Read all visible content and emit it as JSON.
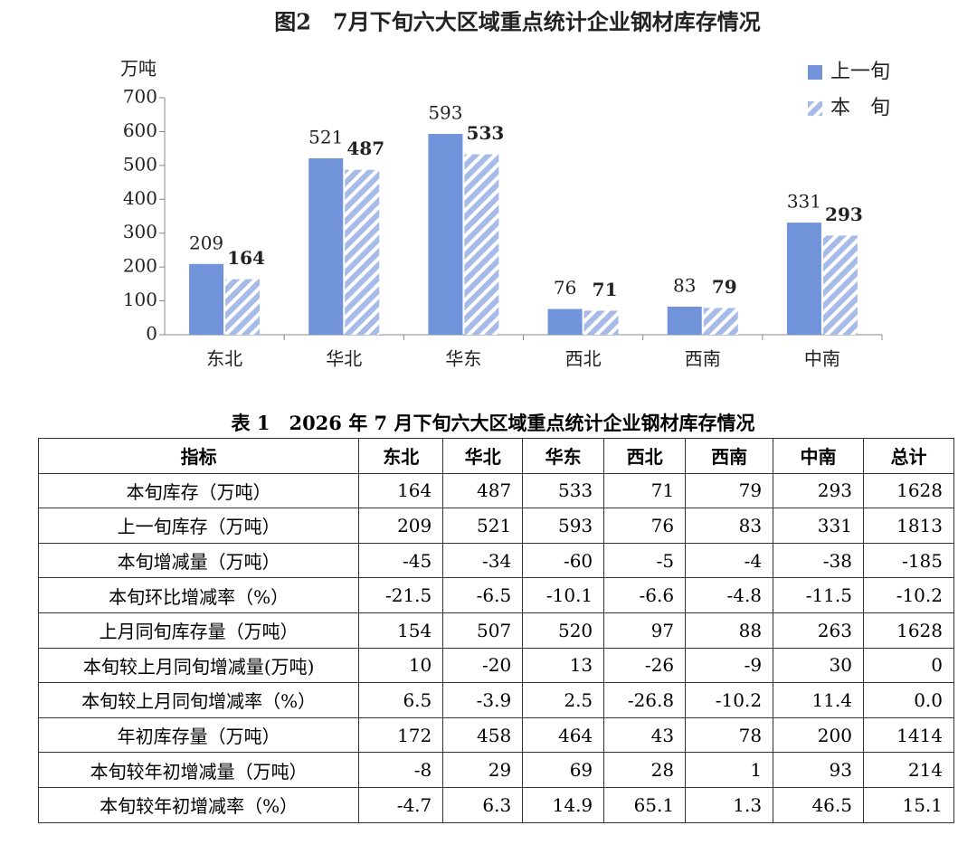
{
  "chart_data": {
    "type": "bar",
    "title": "图2　7月下旬六大区域重点统计企业钢材库存情况",
    "y_label": "万吨",
    "categories": [
      "东北",
      "华北",
      "华东",
      "西北",
      "西南",
      "中南"
    ],
    "series": [
      {
        "name": "上一旬",
        "color": "#7193d9",
        "values": [
          209,
          521,
          593,
          76,
          83,
          331
        ]
      },
      {
        "name": "本　旬",
        "color": "#a7bbe8",
        "hatch": true,
        "values": [
          164,
          487,
          533,
          71,
          79,
          293
        ]
      }
    ],
    "ylim": [
      0,
      700
    ],
    "yticks": [
      0,
      100,
      200,
      300,
      400,
      500,
      600,
      700
    ],
    "grid": false,
    "legend": "top-right"
  },
  "table": {
    "title": "表 1　2026 年 7 月下旬六大区域重点统计企业钢材库存情况",
    "header": [
      "指标",
      "东北",
      "华北",
      "华东",
      "西北",
      "西南",
      "中南",
      "总计"
    ],
    "rows": [
      [
        "本旬库存（万吨）",
        "164",
        "487",
        "533",
        "71",
        "79",
        "293",
        "1628"
      ],
      [
        "上一旬库存（万吨）",
        "209",
        "521",
        "593",
        "76",
        "83",
        "331",
        "1813"
      ],
      [
        "本旬增减量（万吨）",
        "-45",
        "-34",
        "-60",
        "-5",
        "-4",
        "-38",
        "-185"
      ],
      [
        "本旬环比增减率（%）",
        "-21.5",
        "-6.5",
        "-10.1",
        "-6.6",
        "-4.8",
        "-11.5",
        "-10.2"
      ],
      [
        "上月同旬库存量（万吨）",
        "154",
        "507",
        "520",
        "97",
        "88",
        "263",
        "1628"
      ],
      [
        "本旬较上月同旬增减量(万吨)",
        "10",
        "-20",
        "13",
        "-26",
        "-9",
        "30",
        "0"
      ],
      [
        "本旬较上月同旬增减率（%）",
        "6.5",
        "-3.9",
        "2.5",
        "-26.8",
        "-10.2",
        "11.4",
        "0.0"
      ],
      [
        "年初库存量（万吨）",
        "172",
        "458",
        "464",
        "43",
        "78",
        "200",
        "1414"
      ],
      [
        "本旬较年初增减量（万吨）",
        "-8",
        "29",
        "69",
        "28",
        "1",
        "93",
        "214"
      ],
      [
        "本旬较年初增减率（%）",
        "-4.7",
        "6.3",
        "14.9",
        "65.1",
        "1.3",
        "46.5",
        "15.1"
      ]
    ]
  }
}
